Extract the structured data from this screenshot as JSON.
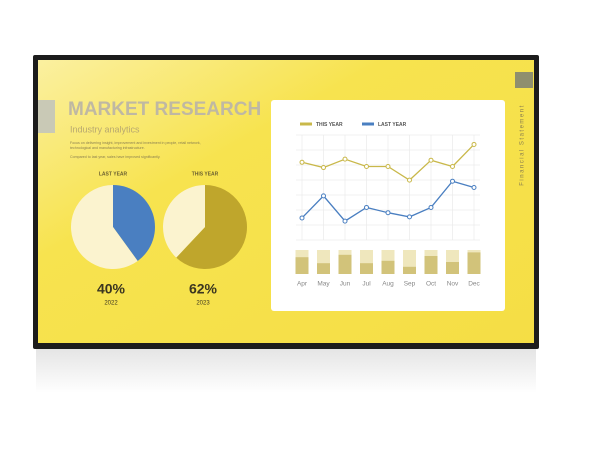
{
  "slide": {
    "title": "MARKET RESEARCH",
    "subtitle": "Industry analytics",
    "body": [
      "Focus on delivering insight, improvement and investment in people, retail network,",
      "technological and manufacturing infrastructure.",
      "Compared to last year, sales have improved significantly."
    ],
    "side_label": "Financial Statement"
  },
  "chart_data": [
    {
      "type": "pie",
      "title": "LAST YEAR",
      "values": [
        40,
        60
      ],
      "value_labels": [
        "40%",
        null
      ],
      "colors": [
        "#4a7fc1",
        "#fbf3cf"
      ],
      "caption": "2022"
    },
    {
      "type": "pie",
      "title": "THIS YEAR",
      "values": [
        62,
        38
      ],
      "value_labels": [
        "62%",
        null
      ],
      "colors": [
        "#bfa62c",
        "#fbf3cf"
      ],
      "caption": "2023"
    },
    {
      "type": "line",
      "categories": [
        "Apr",
        "May",
        "Jun",
        "Jul",
        "Aug",
        "Sep",
        "Oct",
        "Nov",
        "Dec"
      ],
      "series": [
        {
          "name": "THIS YEAR",
          "color": "#c9b84a",
          "values": [
            74,
            69,
            77,
            70,
            70,
            57,
            76,
            70,
            91
          ]
        },
        {
          "name": "LAST YEAR",
          "color": "#4a7fc1",
          "values": [
            21,
            42,
            18,
            31,
            26,
            22,
            31,
            56,
            50
          ]
        }
      ],
      "ylim": [
        0,
        100
      ],
      "grid": true,
      "bars": {
        "type": "bar",
        "values": [
          70,
          45,
          80,
          45,
          55,
          30,
          75,
          50,
          90
        ],
        "ylim": [
          0,
          100
        ],
        "color": "#d2c37a",
        "track_color": "#efe7bd"
      }
    }
  ]
}
